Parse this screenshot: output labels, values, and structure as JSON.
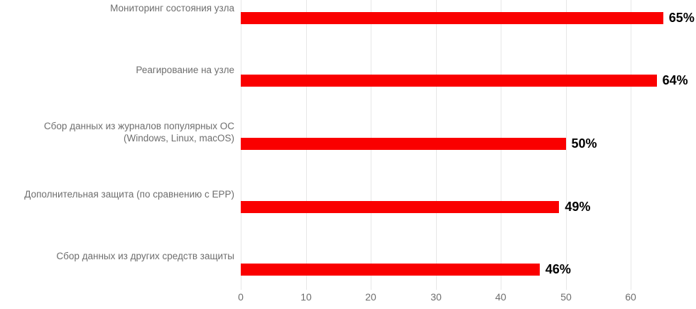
{
  "chart_data": {
    "type": "bar",
    "orientation": "horizontal",
    "title": "",
    "xlabel": "",
    "ylabel": "",
    "categories": [
      [
        "Мониторинг состояния узла"
      ],
      [
        "Реагирование на узле"
      ],
      [
        "Сбор данных из журналов популярных ОС",
        "(Windows, Linux, macOS)"
      ],
      [
        "Дополнительная защита (по сравнению с EPP)"
      ],
      [
        "Сбор данных из других средств защиты"
      ]
    ],
    "values": [
      65,
      64,
      50,
      49,
      46
    ],
    "data_labels": [
      "65%",
      "64%",
      "50%",
      "49%",
      "46%"
    ],
    "x_ticks": [
      "0",
      "10",
      "20",
      "30",
      "40",
      "50",
      "60"
    ],
    "xlim": [
      0,
      70
    ],
    "grid": true,
    "legend": false,
    "bar_color": "#fa0000",
    "label_color": "#6e6e6e",
    "value_label_color": "#000000"
  }
}
